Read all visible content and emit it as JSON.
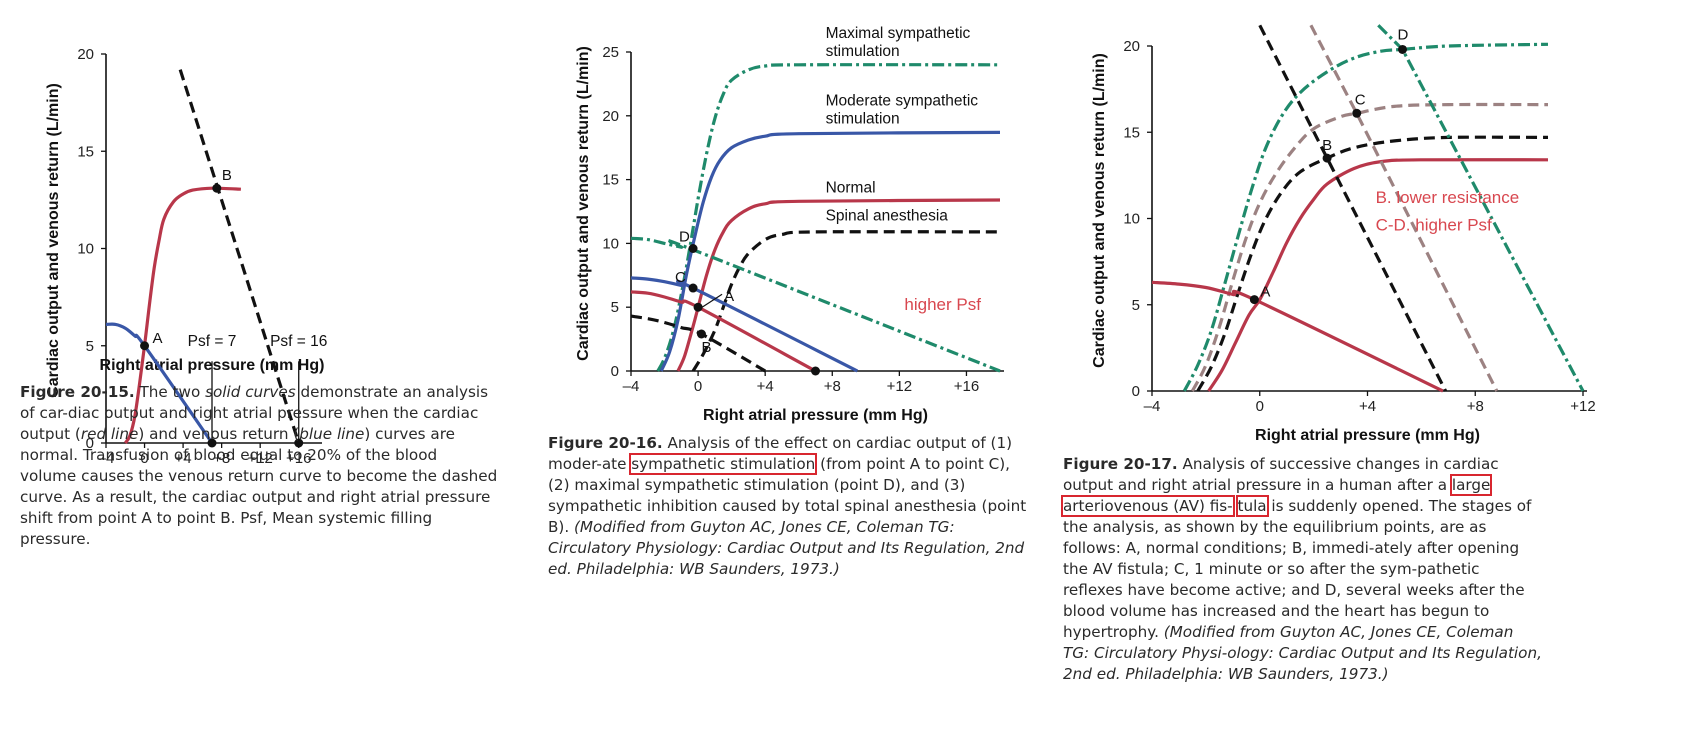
{
  "colors": {
    "red": "#b8374a",
    "blue": "#3957a7",
    "green": "#1f8a6b",
    "mauve": "#9c8282",
    "black": "#111111",
    "accent_red": "#d8474f"
  },
  "chart_data": [
    {
      "type": "line",
      "ylabel": "Cardiac output and venous return (L/min)",
      "xlabel": "Right atrial pressure (mm Hg)",
      "xlim": [
        -4,
        18
      ],
      "ylim": [
        0,
        20
      ],
      "xticks": [
        -4,
        0,
        4,
        8,
        12,
        16
      ],
      "xtick_labels": [
        "–4",
        "0",
        "+4",
        "+8",
        "+12",
        "+16"
      ],
      "yticks": [
        0,
        5,
        10,
        15,
        20
      ],
      "ytick_labels": [
        "0",
        "5",
        "10",
        "15",
        "20"
      ],
      "series": [
        {
          "style": "red",
          "dash": "solid",
          "points": [
            [
              -2,
              0
            ],
            [
              -1.5,
              0.4
            ],
            [
              -1,
              1.4
            ],
            [
              -0.5,
              3.1
            ],
            [
              0,
              5
            ],
            [
              0.5,
              7.1
            ],
            [
              1,
              9
            ],
            [
              1.5,
              10.4
            ],
            [
              2,
              11.5
            ],
            [
              3,
              12.4
            ],
            [
              4,
              12.8
            ],
            [
              5,
              13
            ],
            [
              7,
              13.1
            ],
            [
              10,
              13.05
            ]
          ]
        },
        {
          "style": "blue",
          "dash": "solid",
          "points": [
            [
              -4,
              6.1
            ],
            [
              -3,
              6.1
            ],
            [
              -2,
              5.9
            ],
            [
              -1,
              5.5
            ],
            [
              0,
              5
            ],
            [
              7,
              0
            ]
          ]
        },
        {
          "style": "black",
          "dash": "dashed",
          "points": [
            [
              3.7,
              19.2
            ],
            [
              16,
              0
            ]
          ]
        }
      ],
      "markers": [
        {
          "label": "A",
          "x": 0,
          "y": 5
        },
        {
          "label": "B",
          "x": 7.5,
          "y": 13.1
        },
        {
          "label": "",
          "x": 7,
          "y": 0
        },
        {
          "label": "",
          "x": 16,
          "y": 0
        }
      ],
      "annotations": [
        {
          "text": "Psf = 7",
          "x": 7,
          "y": 5
        },
        {
          "text": "Psf = 16",
          "x": 16,
          "y": 5
        }
      ]
    },
    {
      "type": "line",
      "ylabel": "Cardiac output and venous return (L/min)",
      "xlabel": "Right atrial pressure (mm Hg)",
      "xlim": [
        -4,
        18
      ],
      "ylim": [
        0,
        25
      ],
      "xticks": [
        -4,
        0,
        4,
        8,
        12,
        16
      ],
      "xtick_labels": [
        "–4",
        "0",
        "+4",
        "+8",
        "+12",
        "+16"
      ],
      "yticks": [
        0,
        5,
        10,
        15,
        20,
        25
      ],
      "ytick_labels": [
        "0",
        "5",
        "10",
        "15",
        "20",
        "25"
      ],
      "series": [
        {
          "style": "green",
          "dash": "dashdot",
          "points": [
            [
              -2.4,
              0
            ],
            [
              -2,
              1
            ],
            [
              -1.5,
              3
            ],
            [
              -1,
              6
            ],
            [
              -0.5,
              9.6
            ],
            [
              0,
              13.5
            ],
            [
              0.5,
              17
            ],
            [
              1,
              19.8
            ],
            [
              1.5,
              21.7
            ],
            [
              2,
              22.8
            ],
            [
              3,
              23.6
            ],
            [
              4,
              23.9
            ],
            [
              6,
              24
            ],
            [
              18,
              24
            ]
          ]
        },
        {
          "style": "blue",
          "dash": "solid",
          "points": [
            [
              -2.2,
              0
            ],
            [
              -1.7,
              1.5
            ],
            [
              -1.2,
              4
            ],
            [
              -0.7,
              7.5
            ],
            [
              -0.2,
              10.5
            ],
            [
              0.3,
              13.2
            ],
            [
              0.8,
              15.2
            ],
            [
              1.3,
              16.5
            ],
            [
              2,
              17.5
            ],
            [
              3,
              18.1
            ],
            [
              4,
              18.4
            ],
            [
              6,
              18.6
            ],
            [
              18,
              18.7
            ]
          ]
        },
        {
          "style": "red",
          "dash": "solid",
          "points": [
            [
              -1.2,
              0
            ],
            [
              -0.8,
              1.2
            ],
            [
              -0.3,
              3.5
            ],
            [
              0,
              5
            ],
            [
              0.5,
              7.5
            ],
            [
              1,
              9.5
            ],
            [
              1.5,
              10.9
            ],
            [
              2,
              11.8
            ],
            [
              3,
              12.7
            ],
            [
              4,
              13.1
            ],
            [
              6,
              13.3
            ],
            [
              18,
              13.4
            ]
          ]
        },
        {
          "style": "black",
          "dash": "dashed",
          "points": [
            [
              -0.3,
              0
            ],
            [
              0.3,
              1.3
            ],
            [
              1,
              3.2
            ],
            [
              1.5,
              5
            ],
            [
              2,
              6.8
            ],
            [
              2.5,
              8.2
            ],
            [
              3,
              9.2
            ],
            [
              4,
              10.3
            ],
            [
              5,
              10.7
            ],
            [
              7,
              10.9
            ],
            [
              18,
              10.9
            ]
          ]
        },
        {
          "style": "green",
          "dash": "dashdot",
          "points": [
            [
              -4,
              10.4
            ],
            [
              -3,
              10.3
            ],
            [
              -2,
              10
            ],
            [
              -1,
              9.7
            ],
            [
              -0.3,
              9.5
            ],
            [
              18,
              0
            ]
          ]
        },
        {
          "style": "blue",
          "dash": "solid",
          "points": [
            [
              -4,
              7.3
            ],
            [
              -3,
              7.2
            ],
            [
              -2,
              7
            ],
            [
              -1,
              6.7
            ],
            [
              -0.3,
              6.5
            ],
            [
              9.5,
              0
            ]
          ]
        },
        {
          "style": "red",
          "dash": "solid",
          "points": [
            [
              -4,
              6.2
            ],
            [
              -3,
              6.1
            ],
            [
              -2,
              5.8
            ],
            [
              -1,
              5.4
            ],
            [
              0,
              5
            ],
            [
              7,
              0
            ]
          ]
        },
        {
          "style": "black",
          "dash": "dashed",
          "points": [
            [
              -4,
              4.3
            ],
            [
              -3,
              4.1
            ],
            [
              -2,
              3.8
            ],
            [
              -1,
              3.4
            ],
            [
              0.2,
              2.9
            ],
            [
              4,
              0
            ]
          ]
        }
      ],
      "markers": [
        {
          "label": "D",
          "x": -0.3,
          "y": 9.6
        },
        {
          "label": "C",
          "x": -0.3,
          "y": 6.5
        },
        {
          "label": "A",
          "x": 0,
          "y": 5
        },
        {
          "label": "B",
          "x": 0.2,
          "y": 2.9
        },
        {
          "label": "",
          "x": 7,
          "y": 0
        }
      ],
      "annotations": [
        {
          "text": "Maximal sympathetic",
          "x": 7.6,
          "y": 26.1
        },
        {
          "text": "stimulation",
          "x": 7.6,
          "y": 24.7
        },
        {
          "text": "Moderate sympathetic",
          "x": 7.6,
          "y": 20.8
        },
        {
          "text": "stimulation",
          "x": 7.6,
          "y": 19.4
        },
        {
          "text": "Normal",
          "x": 7.6,
          "y": 14
        },
        {
          "text": "Spinal anesthesia",
          "x": 7.6,
          "y": 11.8
        },
        {
          "text": "higher Psf",
          "x": 12.3,
          "y": 4.8,
          "accent": true
        }
      ]
    },
    {
      "type": "line",
      "ylabel": "Cardiac output and venous return (L/min)",
      "xlabel": "Right atrial pressure (mm Hg)",
      "xlim": [
        -4,
        12
      ],
      "ylim": [
        0,
        20
      ],
      "xticks": [
        -4,
        0,
        4,
        8,
        12
      ],
      "xtick_labels": [
        "–4",
        "0",
        "+4",
        "+8",
        "+12"
      ],
      "yticks": [
        0,
        5,
        10,
        15,
        20
      ],
      "ytick_labels": [
        "0",
        "5",
        "10",
        "15",
        "20"
      ],
      "series": [
        {
          "style": "green",
          "dash": "dashdot",
          "points": [
            [
              -2.8,
              0
            ],
            [
              -2.3,
              1.5
            ],
            [
              -1.8,
              3.5
            ],
            [
              -1.3,
              6.2
            ],
            [
              -0.8,
              9
            ],
            [
              -0.3,
              11.7
            ],
            [
              0.2,
              14
            ],
            [
              0.8,
              15.9
            ],
            [
              1.5,
              17.3
            ],
            [
              2.5,
              18.5
            ],
            [
              3.5,
              19.3
            ],
            [
              4.5,
              19.7
            ],
            [
              5.3,
              19.8
            ],
            [
              7,
              20
            ],
            [
              10.7,
              20.1
            ]
          ]
        },
        {
          "style": "mauve",
          "dash": "dashed",
          "points": [
            [
              -2.5,
              0
            ],
            [
              -2,
              1.5
            ],
            [
              -1.5,
              3.7
            ],
            [
              -1,
              6.4
            ],
            [
              -0.5,
              8.9
            ],
            [
              0,
              10.9
            ],
            [
              0.6,
              12.6
            ],
            [
              1.3,
              14.1
            ],
            [
              2,
              15.2
            ],
            [
              3,
              15.9
            ],
            [
              3.6,
              16.1
            ],
            [
              5,
              16.5
            ],
            [
              7,
              16.6
            ],
            [
              10.7,
              16.6
            ]
          ]
        },
        {
          "style": "black",
          "dash": "dashed",
          "points": [
            [
              -2.3,
              0
            ],
            [
              -1.8,
              1.4
            ],
            [
              -1.3,
              3.3
            ],
            [
              -0.8,
              5.7
            ],
            [
              -0.3,
              8
            ],
            [
              0.2,
              9.9
            ],
            [
              0.8,
              11.5
            ],
            [
              1.5,
              12.7
            ],
            [
              2.5,
              13.5
            ],
            [
              3.5,
              14.1
            ],
            [
              5,
              14.5
            ],
            [
              7,
              14.7
            ],
            [
              10.7,
              14.7
            ]
          ]
        },
        {
          "style": "red",
          "dash": "solid",
          "points": [
            [
              -1.9,
              0
            ],
            [
              -1.4,
              1.2
            ],
            [
              -0.9,
              2.8
            ],
            [
              -0.4,
              4.4
            ],
            [
              0,
              5.3
            ],
            [
              0.5,
              6.9
            ],
            [
              1,
              8.6
            ],
            [
              1.5,
              10
            ],
            [
              2,
              11.1
            ],
            [
              2.5,
              12
            ],
            [
              3.5,
              12.9
            ],
            [
              4.5,
              13.3
            ],
            [
              6,
              13.4
            ],
            [
              10.7,
              13.4
            ]
          ]
        },
        {
          "style": "red",
          "dash": "solid",
          "points": [
            [
              -4,
              6.3
            ],
            [
              -3,
              6.2
            ],
            [
              -2,
              6
            ],
            [
              -1,
              5.6
            ],
            [
              -0.2,
              5.3
            ],
            [
              6.8,
              0
            ]
          ]
        },
        {
          "style": "black",
          "dash": "dashed",
          "points": [
            [
              0,
              21.2
            ],
            [
              2.5,
              13.5
            ],
            [
              6.9,
              0
            ]
          ]
        },
        {
          "style": "mauve",
          "dash": "dashed",
          "points": [
            [
              1.9,
              21.2
            ],
            [
              3.6,
              16.1
            ],
            [
              8.8,
              0
            ]
          ]
        },
        {
          "style": "green",
          "dash": "dashdot",
          "points": [
            [
              4.4,
              21.2
            ],
            [
              5.3,
              19.8
            ],
            [
              12,
              0
            ]
          ]
        }
      ],
      "markers": [
        {
          "label": "A",
          "x": -0.2,
          "y": 5.3
        },
        {
          "label": "B",
          "x": 2.5,
          "y": 13.5
        },
        {
          "label": "C",
          "x": 3.6,
          "y": 16.1
        },
        {
          "label": "D",
          "x": 5.3,
          "y": 19.8
        }
      ],
      "annotations": [
        {
          "text": "B.   lower resistance",
          "x": 4.3,
          "y": 10.9,
          "accent": true
        },
        {
          "text": "C-D. higher Psf",
          "x": 4.3,
          "y": 9.3,
          "accent": true
        }
      ]
    }
  ],
  "captions": {
    "fig1": {
      "label": "Figure 20-15.",
      "p1": " The two ",
      "i1": "solid curves",
      "p2": " demonstrate an analysis of car-diac output and right atrial pressure when the cardiac output (",
      "i2": "red line",
      "p3": ") and venous return (",
      "i3": "blue line",
      "p4": ") curves are normal. Transfusion of blood equal to 20% of the blood volume causes the venous return curve to become the dashed curve. As a result, the cardiac output and right atrial pressure shift from point A to point B. Psf, Mean systemic filling pressure."
    },
    "fig2": {
      "label": "Figure 20-16.",
      "p1": " Analysis of the effect on cardiac output of (1) moder-ate ",
      "h1": "sympathetic stimulation",
      "p2": " (from point A to point C), (2) maximal sympathetic stimulation (point D), and (3) sympathetic inhibition caused by total spinal anesthesia (point B). ",
      "i1": "(Modified from Guyton AC, Jones CE, Coleman TG: Circulatory Physiology: Cardiac Output and Its Regulation, 2nd ed. Philadelphia: WB Saunders, 1973.)"
    },
    "fig3": {
      "label": "Figure 20-17.",
      "p1": " Analysis of successive changes in cardiac output and right atrial pressure in a human after a ",
      "h1": "large arteriovenous (AV) fis-",
      "h2": "tula",
      "p2": " is suddenly opened. The stages of the analysis, as shown by the equilibrium points, are as follows: A, normal conditions; B, immedi-ately after opening the AV fistula; C, 1 minute or so after the sym-pathetic reflexes have become active; and D, several weeks after the blood volume has increased and the heart has begun to hypertrophy. ",
      "i1": "(Modified from Guyton AC, Jones CE, Coleman TG: Circulatory Physi-ology: Cardiac Output and Its Regulation, 2nd ed. Philadelphia: WB Saunders, 1973.)"
    }
  }
}
